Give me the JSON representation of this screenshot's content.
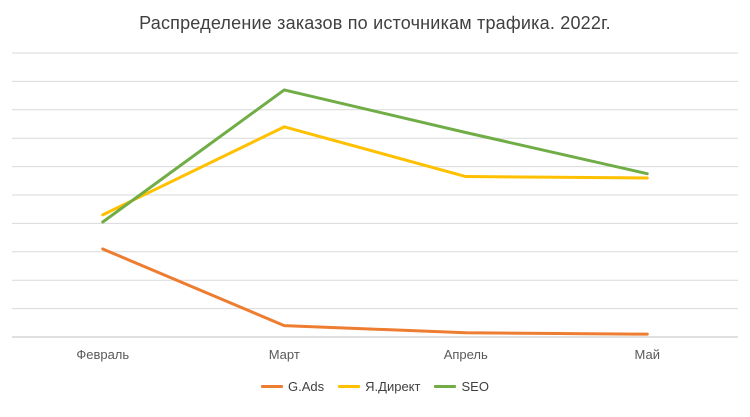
{
  "chart_data": {
    "type": "line",
    "title": "Распределение заказов по источникам трафика. 2022г.",
    "categories": [
      "Февраль",
      "Март",
      "Апрель",
      "Май"
    ],
    "series": [
      {
        "name": "G.Ads",
        "color": "#ED7D31",
        "values": [
          3.1,
          0.4,
          0.15,
          0.1
        ]
      },
      {
        "name": "Я.Директ",
        "color": "#FFC000",
        "values": [
          4.3,
          7.4,
          5.65,
          5.6
        ]
      },
      {
        "name": "SEO",
        "color": "#70AD47",
        "values": [
          4.05,
          8.7,
          7.2,
          5.75
        ]
      }
    ],
    "ylim": [
      0,
      10
    ],
    "gridline_intervals": 10,
    "grid": "horizontal",
    "y_axis_labels_visible": false,
    "x_axis_labels_visible": true,
    "legend_position": "bottom"
  },
  "colors": {
    "grid": "#d9d9d9",
    "axis": "#bfbfbf",
    "title_text": "#404040",
    "axis_text": "#595959",
    "background": "#ffffff"
  }
}
